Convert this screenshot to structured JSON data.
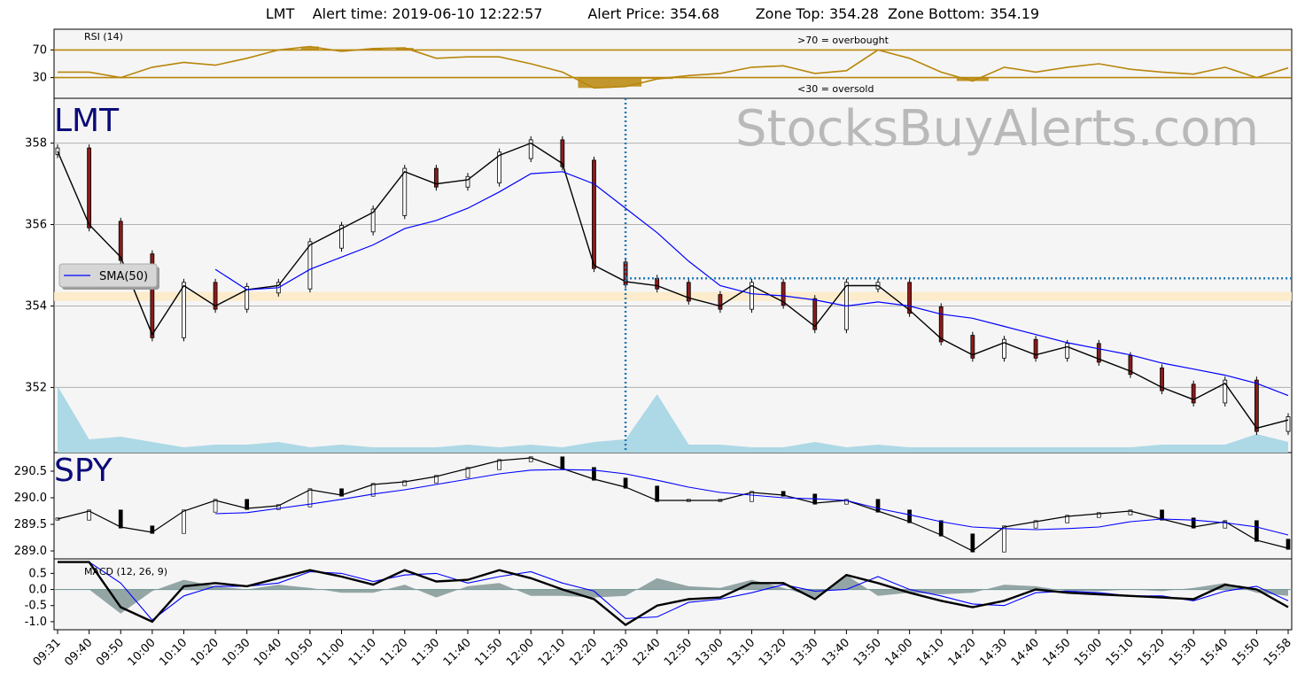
{
  "header": {
    "ticker": "LMT",
    "alert_time": "Alert time: 2019-06-10 12:22:57",
    "alert_price": "Alert Price: 354.68",
    "zone": "Zone Top: 354.28  Zone Bottom: 354.19"
  },
  "watermark": "StocksBuyAlerts.com",
  "colors": {
    "rsi_line": "#b8860b",
    "sma": "#0000ff",
    "volume": "#add8e6",
    "alert_line": "#1f77b4",
    "zone_band": "#fdebc8",
    "macd_line": "#000000",
    "signal_line": "#0000ff",
    "histogram": "#5f7a7a",
    "panel_bg": "#f5f5f5",
    "ticker_label": "#0b0b7a"
  },
  "chart_data": [
    {
      "type": "line",
      "panel": "rsi",
      "label": "RSI (14)",
      "ylim": [
        0,
        100
      ],
      "y_ticks": [
        30,
        70
      ],
      "levels": [
        70,
        30
      ],
      "annotations": [
        ">70 = overbought",
        "<30 = oversold"
      ],
      "x": [
        "09:31",
        "09:40",
        "09:50",
        "10:00",
        "10:10",
        "10:20",
        "10:30",
        "10:40",
        "10:50",
        "11:00",
        "11:10",
        "11:20",
        "11:30",
        "11:40",
        "11:50",
        "12:00",
        "12:10",
        "12:20",
        "12:30",
        "12:40",
        "12:50",
        "13:00",
        "13:10",
        "13:20",
        "13:30",
        "13:40",
        "13:50",
        "14:00",
        "14:10",
        "14:20",
        "14:30",
        "14:40",
        "14:50",
        "15:00",
        "15:10",
        "15:20",
        "15:30",
        "15:40",
        "15:50",
        "15:58"
      ],
      "series": [
        {
          "values": [
            38,
            38,
            30,
            45,
            52,
            48,
            58,
            70,
            75,
            68,
            72,
            73,
            58,
            60,
            60,
            50,
            38,
            15,
            17,
            28,
            33,
            36,
            45,
            47,
            36,
            40,
            70,
            58,
            38,
            25,
            45,
            38,
            45,
            50,
            42,
            38,
            35,
            45,
            30,
            44
          ]
        }
      ]
    },
    {
      "type": "candlestick",
      "panel": "price",
      "ticker": "LMT",
      "y_ticks": [
        352,
        354,
        356,
        358
      ],
      "ylim": [
        350.4,
        359.1
      ],
      "legend": [
        "SMA(50)"
      ],
      "alert_time": "12:22",
      "alert_price": 354.68,
      "zone_top": 354.28,
      "zone_bottom": 354.19,
      "x": [
        "09:31",
        "09:40",
        "09:50",
        "10:00",
        "10:10",
        "10:20",
        "10:30",
        "10:40",
        "10:50",
        "11:00",
        "11:10",
        "11:20",
        "11:30",
        "11:40",
        "11:50",
        "12:00",
        "12:10",
        "12:20",
        "12:30",
        "12:40",
        "12:50",
        "13:00",
        "13:10",
        "13:20",
        "13:30",
        "13:40",
        "13:50",
        "14:00",
        "14:10",
        "14:20",
        "14:30",
        "14:40",
        "14:50",
        "15:00",
        "15:10",
        "15:20",
        "15:30",
        "15:40",
        "15:50",
        "15:58"
      ],
      "close": [
        357.8,
        356.0,
        355.2,
        353.3,
        354.5,
        354.0,
        354.4,
        354.5,
        355.5,
        355.9,
        356.3,
        357.3,
        357.0,
        357.1,
        357.7,
        358.0,
        357.5,
        355.0,
        354.6,
        354.5,
        354.2,
        354.0,
        354.5,
        354.1,
        353.5,
        354.5,
        354.5,
        353.9,
        353.2,
        352.8,
        353.1,
        352.8,
        353.0,
        352.7,
        352.4,
        352.0,
        351.7,
        352.1,
        351.0,
        351.2
      ],
      "sma": [
        null,
        null,
        null,
        null,
        null,
        354.9,
        354.4,
        354.45,
        354.9,
        355.2,
        355.5,
        355.9,
        356.1,
        356.4,
        356.8,
        357.25,
        357.3,
        357.0,
        356.4,
        355.8,
        355.1,
        354.5,
        354.3,
        354.25,
        354.15,
        354.0,
        354.1,
        354.0,
        353.8,
        353.7,
        353.5,
        353.3,
        353.1,
        352.95,
        352.8,
        352.6,
        352.45,
        352.3,
        352.1,
        351.8
      ],
      "volume": [
        0.25,
        0.05,
        0.06,
        0.04,
        0.02,
        0.03,
        0.03,
        0.04,
        0.02,
        0.03,
        0.02,
        0.02,
        0.02,
        0.03,
        0.02,
        0.03,
        0.02,
        0.04,
        0.05,
        0.22,
        0.03,
        0.03,
        0.02,
        0.02,
        0.04,
        0.02,
        0.03,
        0.02,
        0.02,
        0.02,
        0.02,
        0.02,
        0.02,
        0.02,
        0.02,
        0.03,
        0.03,
        0.03,
        0.07,
        0.04
      ]
    },
    {
      "type": "candlestick",
      "panel": "spy",
      "ticker": "SPY",
      "y_ticks": [
        289.0,
        289.5,
        290.0,
        290.5
      ],
      "ylim": [
        288.85,
        290.85
      ],
      "x": [
        "09:31",
        "09:40",
        "09:50",
        "10:00",
        "10:10",
        "10:20",
        "10:30",
        "10:40",
        "10:50",
        "11:00",
        "11:10",
        "11:20",
        "11:30",
        "11:40",
        "11:50",
        "12:00",
        "12:10",
        "12:20",
        "12:30",
        "12:40",
        "12:50",
        "13:00",
        "13:10",
        "13:20",
        "13:30",
        "13:40",
        "13:50",
        "14:00",
        "14:10",
        "14:20",
        "14:30",
        "14:40",
        "14:50",
        "15:00",
        "15:10",
        "15:20",
        "15:30",
        "15:40",
        "15:50",
        "15:58"
      ],
      "close": [
        289.6,
        289.75,
        289.45,
        289.35,
        289.75,
        289.95,
        289.8,
        289.85,
        290.15,
        290.05,
        290.25,
        290.3,
        290.4,
        290.55,
        290.7,
        290.75,
        290.55,
        290.35,
        290.2,
        289.95,
        289.95,
        289.95,
        290.1,
        290.05,
        289.9,
        289.95,
        289.75,
        289.55,
        289.3,
        289.0,
        289.45,
        289.55,
        289.65,
        289.7,
        289.75,
        289.6,
        289.45,
        289.55,
        289.2,
        289.05
      ],
      "sma": [
        null,
        null,
        null,
        null,
        null,
        289.7,
        289.72,
        289.8,
        289.88,
        289.97,
        290.07,
        290.15,
        290.25,
        290.35,
        290.45,
        290.52,
        290.53,
        290.52,
        290.45,
        290.33,
        290.2,
        290.1,
        290.05,
        290.0,
        289.98,
        289.95,
        289.8,
        289.68,
        289.55,
        289.45,
        289.42,
        289.4,
        289.42,
        289.45,
        289.55,
        289.6,
        289.58,
        289.53,
        289.45,
        289.3
      ]
    },
    {
      "type": "line",
      "panel": "macd",
      "label": "MACD (12, 26, 9)",
      "y_ticks": [
        -1.0,
        -0.5,
        0.0,
        0.5
      ],
      "ylim": [
        -1.25,
        0.95
      ],
      "x": [
        "09:31",
        "09:40",
        "09:50",
        "10:00",
        "10:10",
        "10:20",
        "10:30",
        "10:40",
        "10:50",
        "11:00",
        "11:10",
        "11:20",
        "11:30",
        "11:40",
        "11:50",
        "12:00",
        "12:10",
        "12:20",
        "12:30",
        "12:40",
        "12:50",
        "13:00",
        "13:10",
        "13:20",
        "13:30",
        "13:40",
        "13:50",
        "14:00",
        "14:10",
        "14:20",
        "14:30",
        "14:40",
        "14:50",
        "15:00",
        "15:10",
        "15:20",
        "15:30",
        "15:40",
        "15:50",
        "15:58"
      ],
      "series": [
        {
          "name": "MACD",
          "values": [
            0.85,
            0.85,
            -0.55,
            -1.0,
            0.1,
            0.2,
            0.1,
            0.35,
            0.6,
            0.4,
            0.15,
            0.6,
            0.25,
            0.3,
            0.6,
            0.35,
            0.0,
            -0.3,
            -1.1,
            -0.5,
            -0.3,
            -0.25,
            0.2,
            0.2,
            -0.3,
            0.45,
            0.2,
            -0.1,
            -0.35,
            -0.55,
            -0.35,
            0.0,
            -0.1,
            -0.15,
            -0.2,
            -0.25,
            -0.3,
            0.15,
            0.0,
            -0.55
          ]
        },
        {
          "name": "Signal",
          "values": [
            0.85,
            0.85,
            0.2,
            -0.95,
            -0.2,
            0.1,
            0.1,
            0.2,
            0.55,
            0.5,
            0.25,
            0.45,
            0.5,
            0.2,
            0.4,
            0.55,
            0.2,
            -0.05,
            -0.9,
            -0.85,
            -0.4,
            -0.3,
            -0.1,
            0.15,
            -0.05,
            0.0,
            0.4,
            0.0,
            -0.2,
            -0.45,
            -0.5,
            -0.1,
            -0.05,
            -0.1,
            -0.2,
            -0.2,
            -0.35,
            -0.05,
            0.1,
            -0.35
          ]
        }
      ]
    }
  ]
}
